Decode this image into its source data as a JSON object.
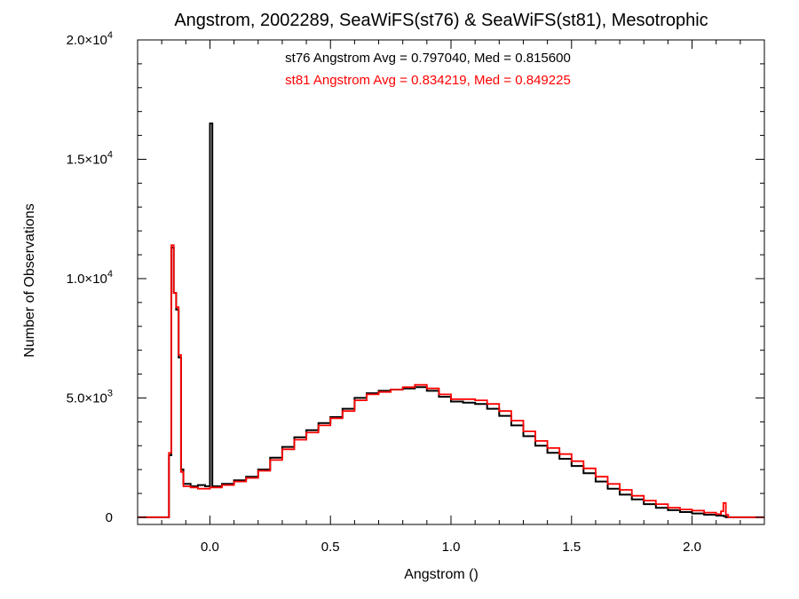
{
  "chart_data": {
    "type": "line",
    "title": "Angstrom, 2002289, SeaWiFS(st76) & SeaWiFS(st81), Mesotrophic",
    "xlabel": "Angstrom ()",
    "ylabel": "Number of Observations",
    "xlim": [
      -0.3,
      2.3
    ],
    "ylim": [
      -300,
      20000
    ],
    "x_ticks": [
      {
        "value": 0.0,
        "label": "0.0"
      },
      {
        "value": 0.5,
        "label": "0.5"
      },
      {
        "value": 1.0,
        "label": "1.0"
      },
      {
        "value": 1.5,
        "label": "1.5"
      },
      {
        "value": 2.0,
        "label": "2.0"
      }
    ],
    "y_ticks": [
      {
        "value": 0,
        "mantissa": "0",
        "exponent": ""
      },
      {
        "value": 5000,
        "mantissa": "5.0×10",
        "exponent": "3"
      },
      {
        "value": 10000,
        "mantissa": "1.0×10",
        "exponent": "4"
      },
      {
        "value": 15000,
        "mantissa": "1.5×10",
        "exponent": "4"
      },
      {
        "value": 20000,
        "mantissa": "2.0×10",
        "exponent": "4"
      }
    ],
    "stats": [
      {
        "text": "st76 Angstrom Avg = 0.797040, Med = 0.815600",
        "color": "#000000"
      },
      {
        "text": "st81 Angstrom Avg = 0.834219, Med = 0.849225",
        "color": "#ff0000"
      }
    ],
    "series": [
      {
        "color": "#000000",
        "points": [
          [
            -0.3,
            0
          ],
          [
            -0.18,
            0
          ],
          [
            -0.17,
            2600
          ],
          [
            -0.16,
            11300
          ],
          [
            -0.15,
            9400
          ],
          [
            -0.14,
            8700
          ],
          [
            -0.13,
            6700
          ],
          [
            -0.12,
            2000
          ],
          [
            -0.11,
            1400
          ],
          [
            -0.08,
            1300
          ],
          [
            -0.05,
            1350
          ],
          [
            -0.02,
            1300
          ],
          [
            -0.005,
            1300
          ],
          [
            0.0,
            16500
          ],
          [
            0.01,
            1300
          ],
          [
            0.05,
            1400
          ],
          [
            0.1,
            1550
          ],
          [
            0.15,
            1700
          ],
          [
            0.2,
            2000
          ],
          [
            0.25,
            2500
          ],
          [
            0.3,
            2950
          ],
          [
            0.35,
            3350
          ],
          [
            0.4,
            3650
          ],
          [
            0.45,
            3950
          ],
          [
            0.5,
            4200
          ],
          [
            0.55,
            4550
          ],
          [
            0.6,
            5000
          ],
          [
            0.65,
            5200
          ],
          [
            0.7,
            5300
          ],
          [
            0.75,
            5350
          ],
          [
            0.8,
            5400
          ],
          [
            0.85,
            5450
          ],
          [
            0.9,
            5300
          ],
          [
            0.95,
            5050
          ],
          [
            1.0,
            4850
          ],
          [
            1.05,
            4800
          ],
          [
            1.1,
            4750
          ],
          [
            1.15,
            4550
          ],
          [
            1.2,
            4250
          ],
          [
            1.25,
            3850
          ],
          [
            1.3,
            3400
          ],
          [
            1.35,
            3000
          ],
          [
            1.4,
            2700
          ],
          [
            1.45,
            2450
          ],
          [
            1.5,
            2150
          ],
          [
            1.55,
            1850
          ],
          [
            1.6,
            1500
          ],
          [
            1.65,
            1200
          ],
          [
            1.7,
            950
          ],
          [
            1.75,
            750
          ],
          [
            1.8,
            550
          ],
          [
            1.85,
            400
          ],
          [
            1.9,
            300
          ],
          [
            1.95,
            220
          ],
          [
            2.0,
            160
          ],
          [
            2.05,
            110
          ],
          [
            2.1,
            70
          ],
          [
            2.13,
            50
          ],
          [
            2.14,
            0
          ],
          [
            2.3,
            0
          ]
        ]
      },
      {
        "color": "#ff0000",
        "points": [
          [
            -0.3,
            0
          ],
          [
            -0.18,
            0
          ],
          [
            -0.17,
            2700
          ],
          [
            -0.16,
            11400
          ],
          [
            -0.15,
            9400
          ],
          [
            -0.14,
            8800
          ],
          [
            -0.13,
            6800
          ],
          [
            -0.12,
            1900
          ],
          [
            -0.11,
            1300
          ],
          [
            -0.08,
            1250
          ],
          [
            -0.05,
            1200
          ],
          [
            -0.02,
            1200
          ],
          [
            0.0,
            1250
          ],
          [
            0.05,
            1350
          ],
          [
            0.1,
            1500
          ],
          [
            0.15,
            1650
          ],
          [
            0.2,
            1950
          ],
          [
            0.25,
            2400
          ],
          [
            0.3,
            2850
          ],
          [
            0.35,
            3250
          ],
          [
            0.4,
            3550
          ],
          [
            0.45,
            3850
          ],
          [
            0.5,
            4150
          ],
          [
            0.55,
            4450
          ],
          [
            0.6,
            4900
          ],
          [
            0.65,
            5150
          ],
          [
            0.7,
            5250
          ],
          [
            0.75,
            5350
          ],
          [
            0.8,
            5450
          ],
          [
            0.85,
            5550
          ],
          [
            0.9,
            5400
          ],
          [
            0.95,
            5150
          ],
          [
            1.0,
            4950
          ],
          [
            1.05,
            4950
          ],
          [
            1.1,
            4900
          ],
          [
            1.15,
            4750
          ],
          [
            1.2,
            4450
          ],
          [
            1.25,
            4050
          ],
          [
            1.3,
            3600
          ],
          [
            1.35,
            3200
          ],
          [
            1.4,
            2900
          ],
          [
            1.45,
            2650
          ],
          [
            1.5,
            2350
          ],
          [
            1.55,
            2050
          ],
          [
            1.6,
            1700
          ],
          [
            1.65,
            1400
          ],
          [
            1.7,
            1150
          ],
          [
            1.75,
            900
          ],
          [
            1.8,
            700
          ],
          [
            1.85,
            550
          ],
          [
            1.9,
            400
          ],
          [
            1.95,
            330
          ],
          [
            2.0,
            280
          ],
          [
            2.05,
            200
          ],
          [
            2.1,
            130
          ],
          [
            2.12,
            250
          ],
          [
            2.13,
            600
          ],
          [
            2.14,
            100
          ],
          [
            2.15,
            0
          ],
          [
            2.3,
            0
          ]
        ]
      }
    ]
  }
}
